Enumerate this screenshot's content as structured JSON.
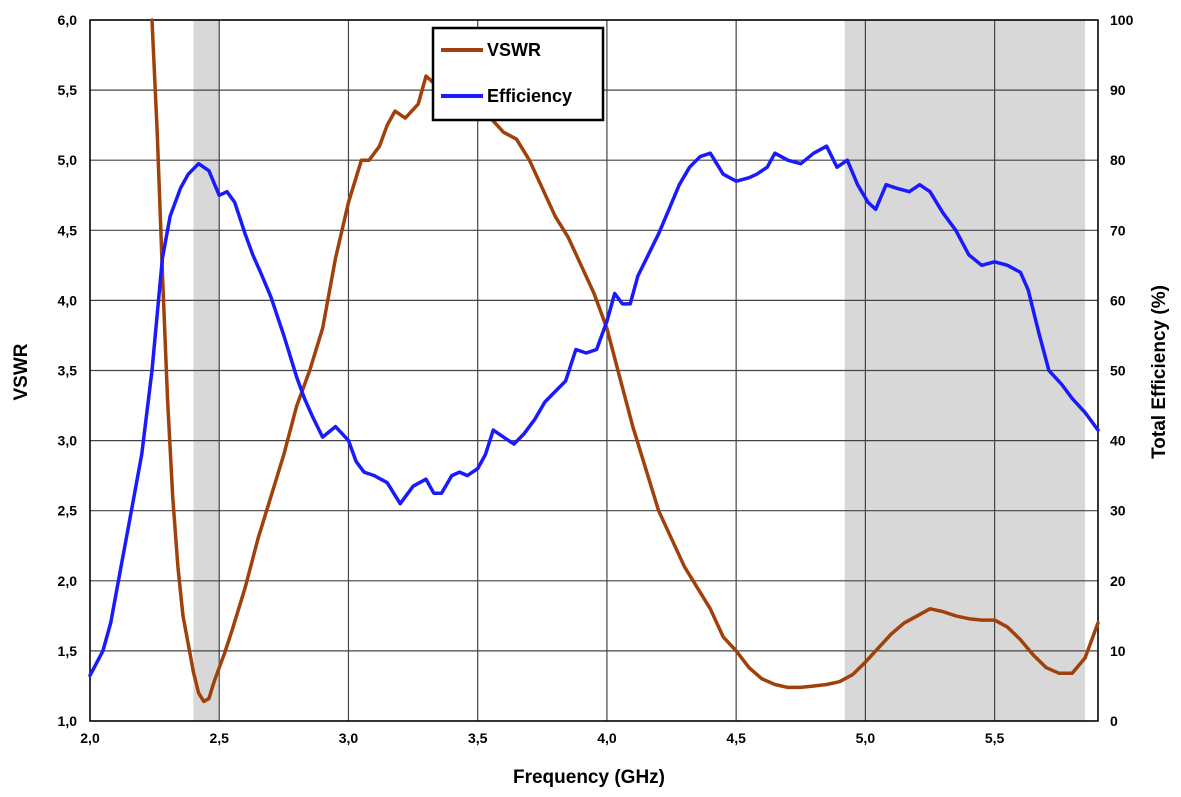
{
  "chart_data": {
    "type": "line",
    "title": "",
    "xlabel": "Frequency (GHz)",
    "ylabel": "VSWR",
    "y2label": "Total Efficiency (%)",
    "xlim": [
      2.0,
      5.9
    ],
    "ylim": [
      1.0,
      6.0
    ],
    "y2lim": [
      0,
      100
    ],
    "x_ticks": [
      "2,0",
      "2,5",
      "3,0",
      "3,5",
      "4,0",
      "4,5",
      "5,0",
      "5,5"
    ],
    "y_ticks": [
      "1,0",
      "1,5",
      "2,0",
      "2,5",
      "3,0",
      "3,5",
      "4,0",
      "4,5",
      "5,0",
      "5,5",
      "6,0"
    ],
    "y2_ticks": [
      "0",
      "10",
      "20",
      "30",
      "40",
      "50",
      "60",
      "70",
      "80",
      "90",
      "100"
    ],
    "grid": true,
    "legend_position": "top-center",
    "shaded_bands": [
      [
        2.4,
        2.5
      ],
      [
        4.92,
        5.85
      ]
    ],
    "series": [
      {
        "name": "VSWR",
        "axis": "left",
        "color": "#a0400a",
        "x": [
          2.24,
          2.26,
          2.28,
          2.3,
          2.32,
          2.34,
          2.36,
          2.38,
          2.4,
          2.42,
          2.44,
          2.46,
          2.48,
          2.5,
          2.52,
          2.55,
          2.6,
          2.65,
          2.7,
          2.75,
          2.8,
          2.85,
          2.9,
          2.95,
          3.0,
          3.05,
          3.08,
          3.12,
          3.15,
          3.18,
          3.22,
          3.27,
          3.3,
          3.33,
          3.38,
          3.45,
          3.5,
          3.55,
          3.6,
          3.65,
          3.7,
          3.75,
          3.8,
          3.85,
          3.9,
          3.95,
          4.0,
          4.05,
          4.1,
          4.15,
          4.2,
          4.25,
          4.3,
          4.35,
          4.4,
          4.45,
          4.5,
          4.55,
          4.6,
          4.65,
          4.7,
          4.75,
          4.8,
          4.85,
          4.9,
          4.95,
          5.0,
          5.05,
          5.1,
          5.15,
          5.2,
          5.25,
          5.3,
          5.35,
          5.4,
          5.45,
          5.5,
          5.55,
          5.6,
          5.65,
          5.7,
          5.75,
          5.8,
          5.85,
          5.9
        ],
        "y": [
          6.0,
          5.2,
          4.2,
          3.3,
          2.6,
          2.1,
          1.75,
          1.55,
          1.35,
          1.2,
          1.14,
          1.16,
          1.28,
          1.38,
          1.48,
          1.65,
          1.95,
          2.3,
          2.6,
          2.9,
          3.25,
          3.5,
          3.8,
          4.3,
          4.7,
          5.0,
          5.0,
          5.1,
          5.25,
          5.35,
          5.3,
          5.4,
          5.6,
          5.55,
          5.45,
          5.45,
          5.5,
          5.3,
          5.2,
          5.15,
          5.0,
          4.8,
          4.6,
          4.45,
          4.25,
          4.05,
          3.8,
          3.45,
          3.1,
          2.8,
          2.5,
          2.3,
          2.1,
          1.95,
          1.8,
          1.6,
          1.5,
          1.38,
          1.3,
          1.26,
          1.24,
          1.24,
          1.25,
          1.26,
          1.28,
          1.33,
          1.42,
          1.52,
          1.62,
          1.7,
          1.75,
          1.8,
          1.78,
          1.75,
          1.73,
          1.72,
          1.72,
          1.67,
          1.58,
          1.47,
          1.38,
          1.34,
          1.34,
          1.45,
          1.7
        ]
      },
      {
        "name": "Efficiency",
        "axis": "right",
        "color": "#1a1aff",
        "x": [
          2.0,
          2.05,
          2.08,
          2.12,
          2.16,
          2.2,
          2.24,
          2.28,
          2.31,
          2.35,
          2.38,
          2.42,
          2.46,
          2.5,
          2.53,
          2.56,
          2.6,
          2.63,
          2.66,
          2.7,
          2.75,
          2.8,
          2.83,
          2.86,
          2.9,
          2.95,
          3.0,
          3.03,
          3.06,
          3.1,
          3.15,
          3.2,
          3.25,
          3.3,
          3.33,
          3.36,
          3.4,
          3.43,
          3.46,
          3.5,
          3.53,
          3.56,
          3.6,
          3.64,
          3.68,
          3.72,
          3.76,
          3.8,
          3.84,
          3.88,
          3.92,
          3.96,
          4.0,
          4.03,
          4.06,
          4.09,
          4.12,
          4.16,
          4.2,
          4.24,
          4.28,
          4.32,
          4.36,
          4.4,
          4.45,
          4.5,
          4.55,
          4.58,
          4.62,
          4.65,
          4.7,
          4.75,
          4.8,
          4.85,
          4.89,
          4.93,
          4.97,
          5.01,
          5.04,
          5.08,
          5.12,
          5.17,
          5.21,
          5.25,
          5.3,
          5.35,
          5.4,
          5.45,
          5.5,
          5.55,
          5.6,
          5.63,
          5.67,
          5.71,
          5.76,
          5.8,
          5.85,
          5.9
        ],
        "y": [
          6.5,
          10,
          14,
          22,
          30,
          38,
          50,
          66,
          72,
          76,
          78,
          79.5,
          78.5,
          75,
          75.5,
          74,
          69.5,
          66.5,
          64,
          60.5,
          55,
          49,
          46,
          43.5,
          40.5,
          42,
          40,
          37,
          35.5,
          35,
          34,
          31,
          33.5,
          34.5,
          32.5,
          32.5,
          35,
          35.5,
          35,
          36,
          38,
          41.5,
          40.5,
          39.5,
          41,
          43,
          45.5,
          47,
          48.5,
          53,
          52.5,
          53,
          57,
          61,
          59.5,
          59.5,
          63.5,
          66.5,
          69.5,
          73,
          76.5,
          79,
          80.5,
          81,
          78,
          77,
          77.5,
          78,
          79,
          81,
          80,
          79.5,
          81,
          82,
          79,
          80,
          76.5,
          74,
          73,
          76.5,
          76,
          75.5,
          76.5,
          75.5,
          72.5,
          70,
          66.5,
          65,
          65.5,
          65,
          64,
          61.5,
          55.5,
          50,
          48,
          46,
          44,
          41.5
        ]
      }
    ]
  }
}
